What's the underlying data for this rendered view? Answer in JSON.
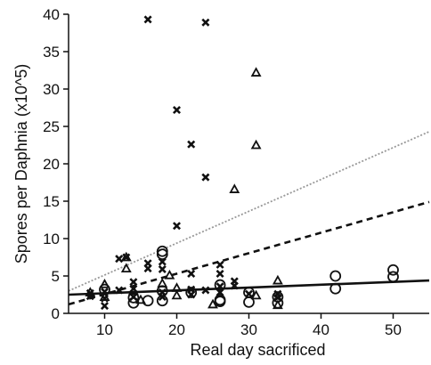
{
  "chart_data": {
    "type": "scatter",
    "xlabel": "Real day sacrificed",
    "ylabel": "Spores per Daphnia (x10^5)",
    "xlim": [
      5,
      55
    ],
    "ylim": [
      0,
      40
    ],
    "x_ticks": [
      10,
      20,
      30,
      40,
      50
    ],
    "y_ticks": [
      0,
      5,
      10,
      15,
      20,
      25,
      30,
      35,
      40
    ],
    "grid": false,
    "legend": "none",
    "series": [
      {
        "marker": "cross",
        "color": "#111111",
        "points": [
          [
            8,
            2.3
          ],
          [
            8,
            2.7
          ],
          [
            10,
            1.0
          ],
          [
            10,
            2.0
          ],
          [
            10,
            2.9
          ],
          [
            12,
            3.1
          ],
          [
            12,
            7.3
          ],
          [
            13,
            7.5
          ],
          [
            14,
            4.2
          ],
          [
            14,
            3.3
          ],
          [
            14,
            2.2
          ],
          [
            16,
            6.0
          ],
          [
            16,
            6.7
          ],
          [
            16,
            39.3
          ],
          [
            18,
            5.9
          ],
          [
            18,
            6.9
          ],
          [
            18,
            2.8
          ],
          [
            18,
            2.2
          ],
          [
            20,
            27.2
          ],
          [
            20,
            11.7
          ],
          [
            22,
            22.6
          ],
          [
            22,
            5.3
          ],
          [
            22,
            3.2
          ],
          [
            22,
            2.5
          ],
          [
            24,
            38.9
          ],
          [
            24,
            18.2
          ],
          [
            24,
            3.1
          ],
          [
            26,
            6.5
          ],
          [
            26,
            5.3
          ],
          [
            26,
            3.6
          ],
          [
            26,
            2.8
          ],
          [
            28,
            4.3
          ],
          [
            28,
            3.7
          ],
          [
            30,
            2.6
          ],
          [
            34,
            2.1
          ],
          [
            34,
            2.6
          ]
        ]
      },
      {
        "marker": "triangle",
        "color": "#111111",
        "points": [
          [
            8,
            2.8
          ],
          [
            10,
            3.9
          ],
          [
            10,
            2.2
          ],
          [
            13,
            6.0
          ],
          [
            13,
            7.5
          ],
          [
            14,
            3.0
          ],
          [
            15,
            1.8
          ],
          [
            18,
            4.0
          ],
          [
            19,
            5.1
          ],
          [
            20,
            3.4
          ],
          [
            20,
            2.4
          ],
          [
            25,
            1.2
          ],
          [
            28,
            16.6
          ],
          [
            31,
            32.2
          ],
          [
            31,
            22.5
          ],
          [
            31,
            2.4
          ],
          [
            34,
            4.4
          ],
          [
            34,
            1.1
          ]
        ]
      },
      {
        "marker": "circle",
        "color": "#111111",
        "points": [
          [
            10,
            3.2
          ],
          [
            14,
            2.1
          ],
          [
            14,
            1.4
          ],
          [
            16,
            1.7
          ],
          [
            18,
            8.3
          ],
          [
            18,
            7.9
          ],
          [
            18,
            3.0
          ],
          [
            18,
            1.7
          ],
          [
            22,
            2.8
          ],
          [
            26,
            3.8
          ],
          [
            26,
            1.8
          ],
          [
            26,
            1.6
          ],
          [
            30,
            2.8
          ],
          [
            30,
            1.5
          ],
          [
            34,
            2.2
          ],
          [
            34,
            1.4
          ],
          [
            42,
            5.0
          ],
          [
            42,
            3.3
          ],
          [
            50,
            5.8
          ],
          [
            50,
            4.9
          ]
        ]
      }
    ],
    "fit_lines": [
      {
        "style": "dotted",
        "color": "#999999",
        "x": [
          5,
          55
        ],
        "y": [
          3.0,
          24.3
        ]
      },
      {
        "style": "dashed",
        "color": "#111111",
        "x": [
          5,
          55
        ],
        "y": [
          1.2,
          14.9
        ]
      },
      {
        "style": "solid",
        "color": "#111111",
        "x": [
          5,
          55
        ],
        "y": [
          2.5,
          4.4
        ]
      }
    ]
  }
}
